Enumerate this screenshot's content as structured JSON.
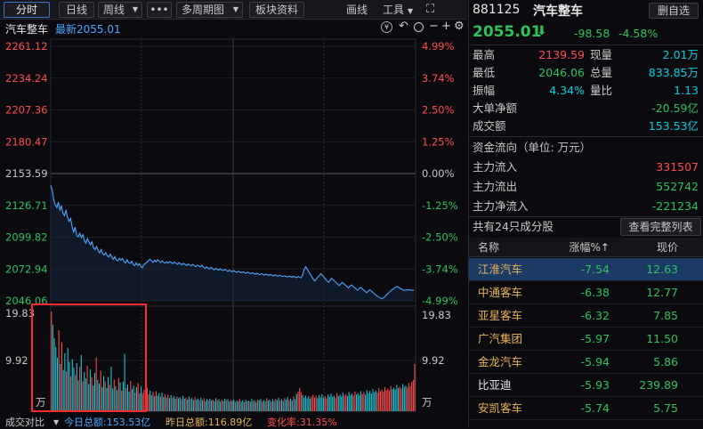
{
  "toolbar": {
    "fenshi": "分时",
    "rixian": "日线",
    "zhouxian": "周线",
    "more": "•••",
    "multi_period": "多周期图",
    "block_info": "板块资料",
    "draw": "画线",
    "tools": "工具",
    "expand": "⛶"
  },
  "chart_header": {
    "name": "汽车整车",
    "latest": "最新2055.01"
  },
  "chart_data": {
    "type": "line",
    "base": 2153.59,
    "ylim": [
      2046.06,
      2261.12
    ],
    "price_ticks_left": [
      "2261.12",
      "2234.24",
      "2207.36",
      "2180.47",
      "2153.59",
      "2126.71",
      "2099.82",
      "2072.94",
      "2046.06"
    ],
    "pct_ticks_right": [
      "4.99%",
      "3.74%",
      "2.50%",
      "1.25%",
      "0.00%",
      "-1.25%",
      "-2.50%",
      "-3.74%",
      "-4.99%"
    ],
    "x_points": 240,
    "price": [
      2143.5,
      2139.6,
      2131.2,
      2127.4,
      2124.8,
      2129.5,
      2122.9,
      2126.0,
      2120.3,
      2118.2,
      2122.4,
      2116.5,
      2113.2,
      2115.8,
      2109.0,
      2104.2,
      2108.3,
      2101.4,
      2100.1,
      2103.2,
      2099.5,
      2102.0,
      2097.2,
      2094.8,
      2098.5,
      2096.1,
      2093.4,
      2095.9,
      2091.0,
      2089.3,
      2092.0,
      2088.6,
      2086.5,
      2089.5,
      2086.0,
      2084.8,
      2087.0,
      2084.2,
      2083.1,
      2085.5,
      2082.8,
      2081.0,
      2083.4,
      2080.6,
      2079.9,
      2082.0,
      2080.5,
      2081.8,
      2079.4,
      2078.0,
      2080.8,
      2078.5,
      2077.6,
      2079.5,
      2076.8,
      2075.9,
      2078.2,
      2076.0,
      2077.4,
      2075.2,
      2074.0,
      2076.5,
      2077.8,
      2078.6,
      2080.0,
      2081.2,
      2079.8,
      2078.5,
      2080.4,
      2079.0,
      2080.9,
      2079.6,
      2078.4,
      2079.9,
      2078.6,
      2077.9,
      2079.0,
      2078.0,
      2079.2,
      2078.4,
      2077.6,
      2078.8,
      2077.9,
      2077.0,
      2078.3,
      2077.4,
      2076.5,
      2077.8,
      2076.9,
      2075.8,
      2077.2,
      2076.4,
      2075.6,
      2076.8,
      2075.9,
      2075.0,
      2076.2,
      2075.6,
      2074.8,
      2076.0,
      2074.6,
      2073.5,
      2074.8,
      2073.9,
      2073.0,
      2074.3,
      2073.2,
      2072.4,
      2073.6,
      2072.8,
      2072.0,
      2073.1,
      2072.2,
      2071.6,
      2072.6,
      2071.8,
      2071.0,
      2072.0,
      2071.3,
      2070.6,
      2071.5,
      2070.8,
      2070.2,
      2071.0,
      2070.4,
      2069.8,
      2070.6,
      2070.0,
      2069.4,
      2070.3,
      2069.6,
      2069.0,
      2069.8,
      2069.2,
      2068.6,
      2069.4,
      2068.8,
      2068.2,
      2069.0,
      2068.4,
      2067.8,
      2068.6,
      2068.0,
      2067.5,
      2068.3,
      2067.7,
      2067.2,
      2068.0,
      2067.4,
      2066.9,
      2067.6,
      2067.1,
      2066.6,
      2067.2,
      2066.8,
      2066.3,
      2067.0,
      2066.5,
      2066.0,
      2066.8,
      2066.2,
      2065.7,
      2066.5,
      2066.0,
      2065.5,
      2068.0,
      2072.4,
      2074.8,
      2073.0,
      2070.5,
      2068.8,
      2066.5,
      2064.2,
      2062.8,
      2064.6,
      2066.2,
      2067.5,
      2069.0,
      2067.6,
      2066.0,
      2064.4,
      2063.0,
      2061.8,
      2063.4,
      2065.0,
      2064.0,
      2062.6,
      2061.5,
      2060.2,
      2059.0,
      2060.4,
      2061.6,
      2060.5,
      2059.4,
      2058.2,
      2057.0,
      2058.4,
      2059.5,
      2058.4,
      2057.3,
      2056.2,
      2055.0,
      2056.3,
      2057.4,
      2056.3,
      2055.2,
      2054.0,
      2052.9,
      2054.2,
      2055.4,
      2054.3,
      2053.2,
      2052.0,
      2051.0,
      2050.0,
      2049.2,
      2048.5,
      2047.8,
      2048.6,
      2049.8,
      2051.2,
      2052.4,
      2053.6,
      2054.8,
      2055.9,
      2056.8,
      2057.6,
      2058.2,
      2057.4,
      2056.5,
      2055.8,
      2055.2,
      2055.0,
      2055.2,
      2055.4,
      2055.3,
      2055.1,
      2055.0,
      2055.01
    ],
    "volume_ticks_left": [
      "19.83",
      "9.92",
      "万"
    ],
    "volume_ticks_right": [
      "19.83",
      "9.92",
      "万"
    ],
    "vol_max": 19.83,
    "volume": [
      19.83,
      17.2,
      14.5,
      12.8,
      10.6,
      16.1,
      9.4,
      13.7,
      8.2,
      11.5,
      7.9,
      12.6,
      9.8,
      6.9,
      10.4,
      8.7,
      7.2,
      9.6,
      6.1,
      8.8,
      11.2,
      5.9,
      7.8,
      6.5,
      9.1,
      5.4,
      8.3,
      6.8,
      5.1,
      7.6,
      10.7,
      6.2,
      5.5,
      8.1,
      4.8,
      7.0,
      5.9,
      4.6,
      6.8,
      5.2,
      8.9,
      4.5,
      6.3,
      5.0,
      4.2,
      6.6,
      5.7,
      4.1,
      5.9,
      11.4,
      4.6,
      5.3,
      3.9,
      6.0,
      4.4,
      5.1,
      3.7,
      4.8,
      5.6,
      3.5,
      4.9,
      3.6,
      4.3,
      3.3,
      4.7,
      3.4,
      4.1,
      3.2,
      3.8,
      3.0,
      4.0,
      3.1,
      3.6,
      2.9,
      3.7,
      2.8,
      3.4,
      2.7,
      3.3,
      2.6,
      3.2,
      2.7,
      3.0,
      2.5,
      2.9,
      2.6,
      2.8,
      2.4,
      3.1,
      2.5,
      2.7,
      2.3,
      2.9,
      2.4,
      2.6,
      2.2,
      2.8,
      2.3,
      2.5,
      2.1,
      2.7,
      2.2,
      2.6,
      2.0,
      2.4,
      2.2,
      2.5,
      2.1,
      2.3,
      2.0,
      2.6,
      2.1,
      2.4,
      1.9,
      2.3,
      2.0,
      2.5,
      2.2,
      2.4,
      1.9,
      2.2,
      2.0,
      2.3,
      1.8,
      2.1,
      2.0,
      2.4,
      1.9,
      2.2,
      1.8,
      2.3,
      2.0,
      2.1,
      1.9,
      2.5,
      2.0,
      2.2,
      1.8,
      2.3,
      2.1,
      2.4,
      1.9,
      2.2,
      2.0,
      2.6,
      2.1,
      2.3,
      1.9,
      2.4,
      2.0,
      2.5,
      2.2,
      2.7,
      2.1,
      2.4,
      2.0,
      2.6,
      2.3,
      2.8,
      2.2,
      2.5,
      2.1,
      2.9,
      2.4,
      3.4,
      3.9,
      4.6,
      3.8,
      3.2,
      2.7,
      3.1,
      2.6,
      3.0,
      2.5,
      2.9,
      3.3,
      2.7,
      3.1,
      2.6,
      3.2,
      2.8,
      3.4,
      2.7,
      3.0,
      2.6,
      3.3,
      2.9,
      3.5,
      2.8,
      3.1,
      2.7,
      3.6,
      3.0,
      3.3,
      2.9,
      3.7,
      3.1,
      3.4,
      3.0,
      3.8,
      3.2,
      3.5,
      3.1,
      3.9,
      3.3,
      3.6,
      3.2,
      4.0,
      3.4,
      3.8,
      3.3,
      4.2,
      3.6,
      4.0,
      3.5,
      4.4,
      3.8,
      4.1,
      3.7,
      4.6,
      4.0,
      4.3,
      3.9,
      4.8,
      4.2,
      4.5,
      4.1,
      5.0,
      4.4,
      4.7,
      4.3,
      5.2,
      4.6,
      4.9,
      4.5,
      5.4,
      4.8,
      5.1,
      4.7,
      5.6,
      5.0,
      5.8,
      6.2,
      9.4
    ],
    "x_labels": [],
    "title": "",
    "xlabel": "",
    "ylabel": ""
  },
  "vol_footer": {
    "label": "成交对比",
    "today": "今日总额:153.53亿",
    "yesterday": "昨日总额:116.89亿",
    "change": "变化率:31.35%"
  },
  "quote": {
    "code": "881125",
    "name": "汽车整车",
    "delete_btn": "删自选",
    "price": "2055.01",
    "arrow": "⬇",
    "change": "-98.58",
    "pct": "-4.58%"
  },
  "stats": [
    {
      "l1": "最高",
      "v1": "2139.59",
      "l2": "现量",
      "v2": "2.01万"
    },
    {
      "l1": "最低",
      "v1": "2046.06",
      "l2": "总量",
      "v2": "833.85万"
    },
    {
      "l1": "振幅",
      "v1": "4.34%",
      "l2": "量比",
      "v2": "1.13"
    }
  ],
  "stats2": [
    {
      "l": "大单净额",
      "v": "-20.59亿"
    },
    {
      "l": "成交额",
      "v": "153.53亿"
    }
  ],
  "flow": {
    "title": "资金流向（单位: 万元）",
    "rows": [
      {
        "l": "主力流入",
        "v": "331507"
      },
      {
        "l": "主力流出",
        "v": "552742"
      },
      {
        "l": "主力净流入",
        "v": "-221234"
      }
    ]
  },
  "constituents": {
    "title": "共有24只成分股",
    "btn": "查看完整列表",
    "headers": {
      "name": "名称",
      "chg": "涨幅%↑",
      "price": "现价"
    },
    "rows": [
      {
        "name": "江淮汽车",
        "chg": "-7.54",
        "price": "12.63"
      },
      {
        "name": "中通客车",
        "chg": "-6.38",
        "price": "12.77"
      },
      {
        "name": "亚星客车",
        "chg": "-6.32",
        "price": "7.85"
      },
      {
        "name": "广汽集团",
        "chg": "-5.97",
        "price": "11.50"
      },
      {
        "name": "金龙汽车",
        "chg": "-5.94",
        "price": "5.86"
      },
      {
        "name": "比亚迪",
        "chg": "-5.93",
        "price": "239.89"
      },
      {
        "name": "安凯客车",
        "chg": "-5.74",
        "price": "5.75"
      }
    ]
  }
}
